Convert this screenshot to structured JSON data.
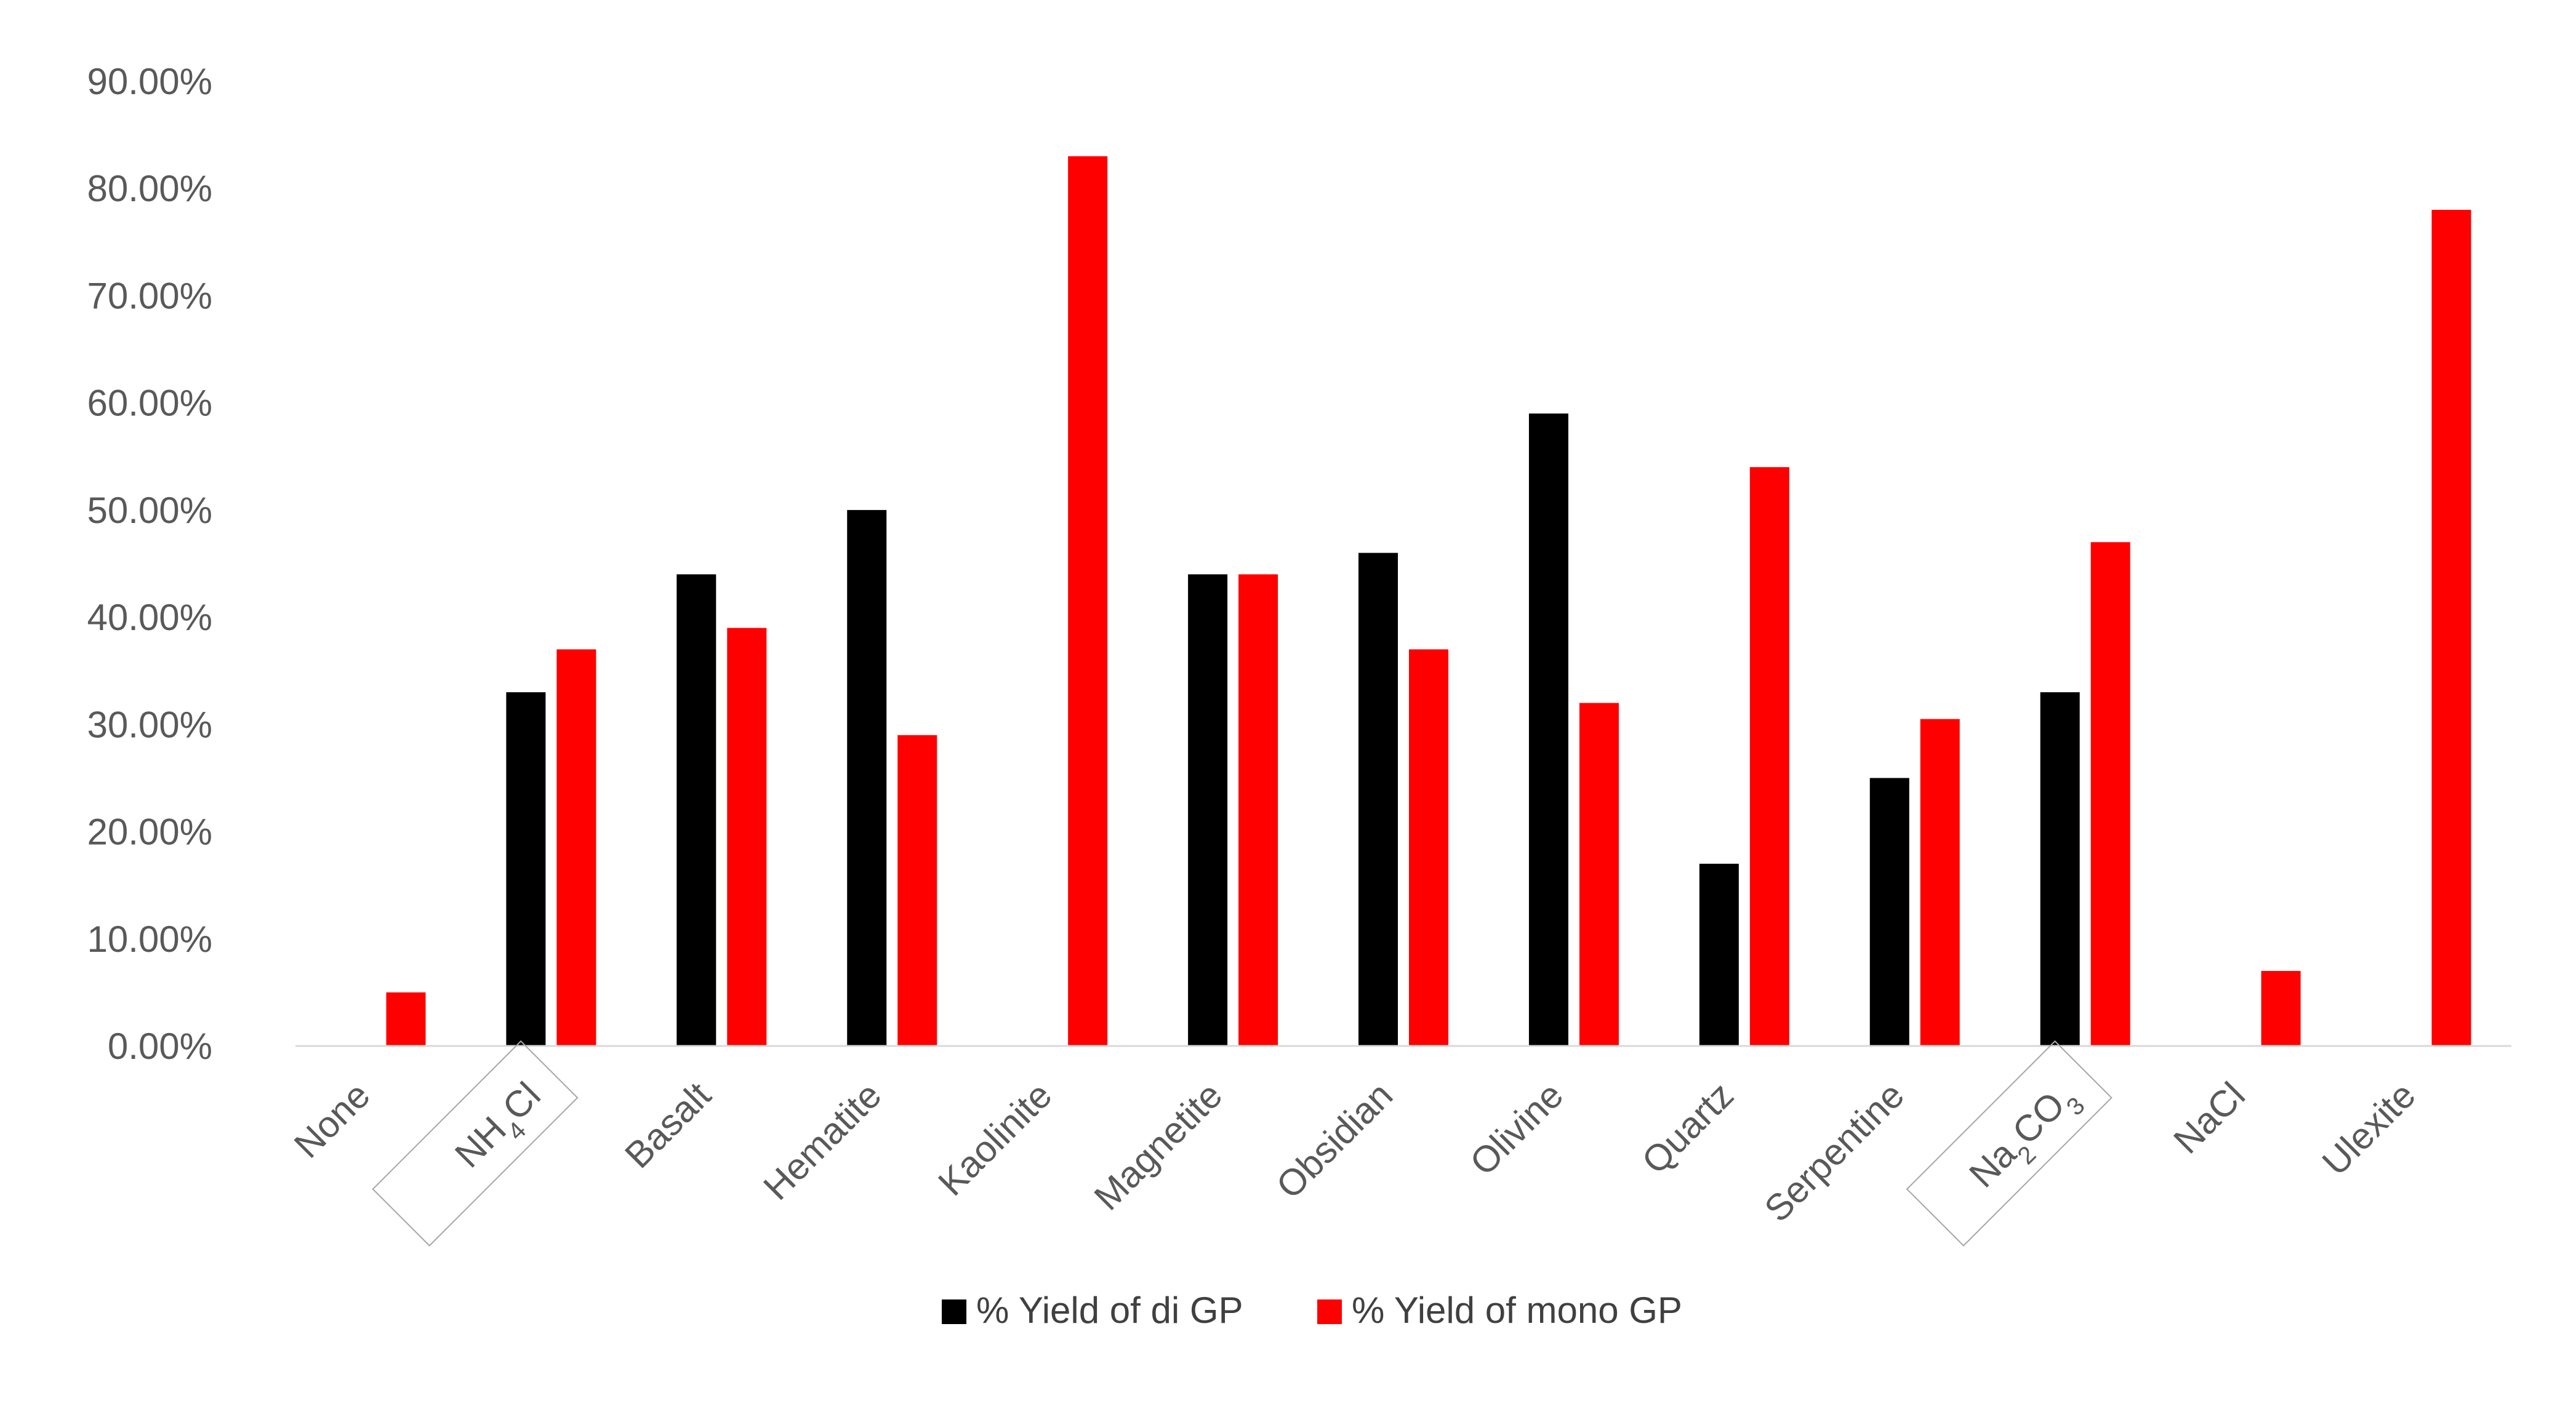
{
  "colors": {
    "di": "#000000",
    "mono": "#ff0000",
    "text": "#595959",
    "box": "#a6a6a6"
  },
  "legend": [
    {
      "label": "% Yield of di GP",
      "color": "#000000"
    },
    {
      "label": "% Yield of mono GP",
      "color": "#ff0000"
    }
  ],
  "chart_data": {
    "type": "bar",
    "categories": [
      "None",
      "NH4Cl",
      "Basalt",
      "Hematite",
      "Kaolinite",
      "Magnetite",
      "Obsidian",
      "Olivine",
      "Quartz",
      "Serpentine",
      "Na2CO3",
      "NaCl",
      "Ulexite"
    ],
    "category_labels": [
      {
        "parts": [
          {
            "t": "None"
          }
        ]
      },
      {
        "parts": [
          {
            "t": "NH"
          },
          {
            "t": "4",
            "sub": true
          },
          {
            "t": "Cl"
          }
        ],
        "boxed": true
      },
      {
        "parts": [
          {
            "t": "Basalt"
          }
        ]
      },
      {
        "parts": [
          {
            "t": "Hematite"
          }
        ]
      },
      {
        "parts": [
          {
            "t": "Kaolinite"
          }
        ]
      },
      {
        "parts": [
          {
            "t": "Magnetite"
          }
        ]
      },
      {
        "parts": [
          {
            "t": "Obsidian"
          }
        ]
      },
      {
        "parts": [
          {
            "t": "Olivine"
          }
        ]
      },
      {
        "parts": [
          {
            "t": "Quartz"
          }
        ]
      },
      {
        "parts": [
          {
            "t": "Serpentine"
          }
        ]
      },
      {
        "parts": [
          {
            "t": "Na"
          },
          {
            "t": "2",
            "sub": true
          },
          {
            "t": "CO"
          },
          {
            "t": "3",
            "sub": true
          }
        ],
        "boxed": true
      },
      {
        "parts": [
          {
            "t": "NaCl"
          }
        ]
      },
      {
        "parts": [
          {
            "t": "Ulexite"
          }
        ]
      }
    ],
    "series": [
      {
        "name": "% Yield of di GP",
        "color": "#000000",
        "values": [
          null,
          0.33,
          0.44,
          0.5,
          null,
          0.44,
          0.46,
          0.59,
          0.17,
          0.25,
          0.33,
          null,
          null
        ]
      },
      {
        "name": "% Yield of mono GP",
        "color": "#ff0000",
        "values": [
          0.05,
          0.37,
          0.39,
          0.29,
          0.83,
          0.44,
          0.37,
          0.32,
          0.54,
          0.305,
          0.47,
          0.07,
          0.78
        ]
      }
    ],
    "ylim": [
      0,
      0.9
    ],
    "yticks": [
      "0.00%",
      "10.00%",
      "20.00%",
      "30.00%",
      "40.00%",
      "50.00%",
      "60.00%",
      "70.00%",
      "80.00%",
      "90.00%"
    ],
    "grid": false,
    "legend_position": "bottom",
    "title": "",
    "xlabel": "",
    "ylabel": ""
  }
}
